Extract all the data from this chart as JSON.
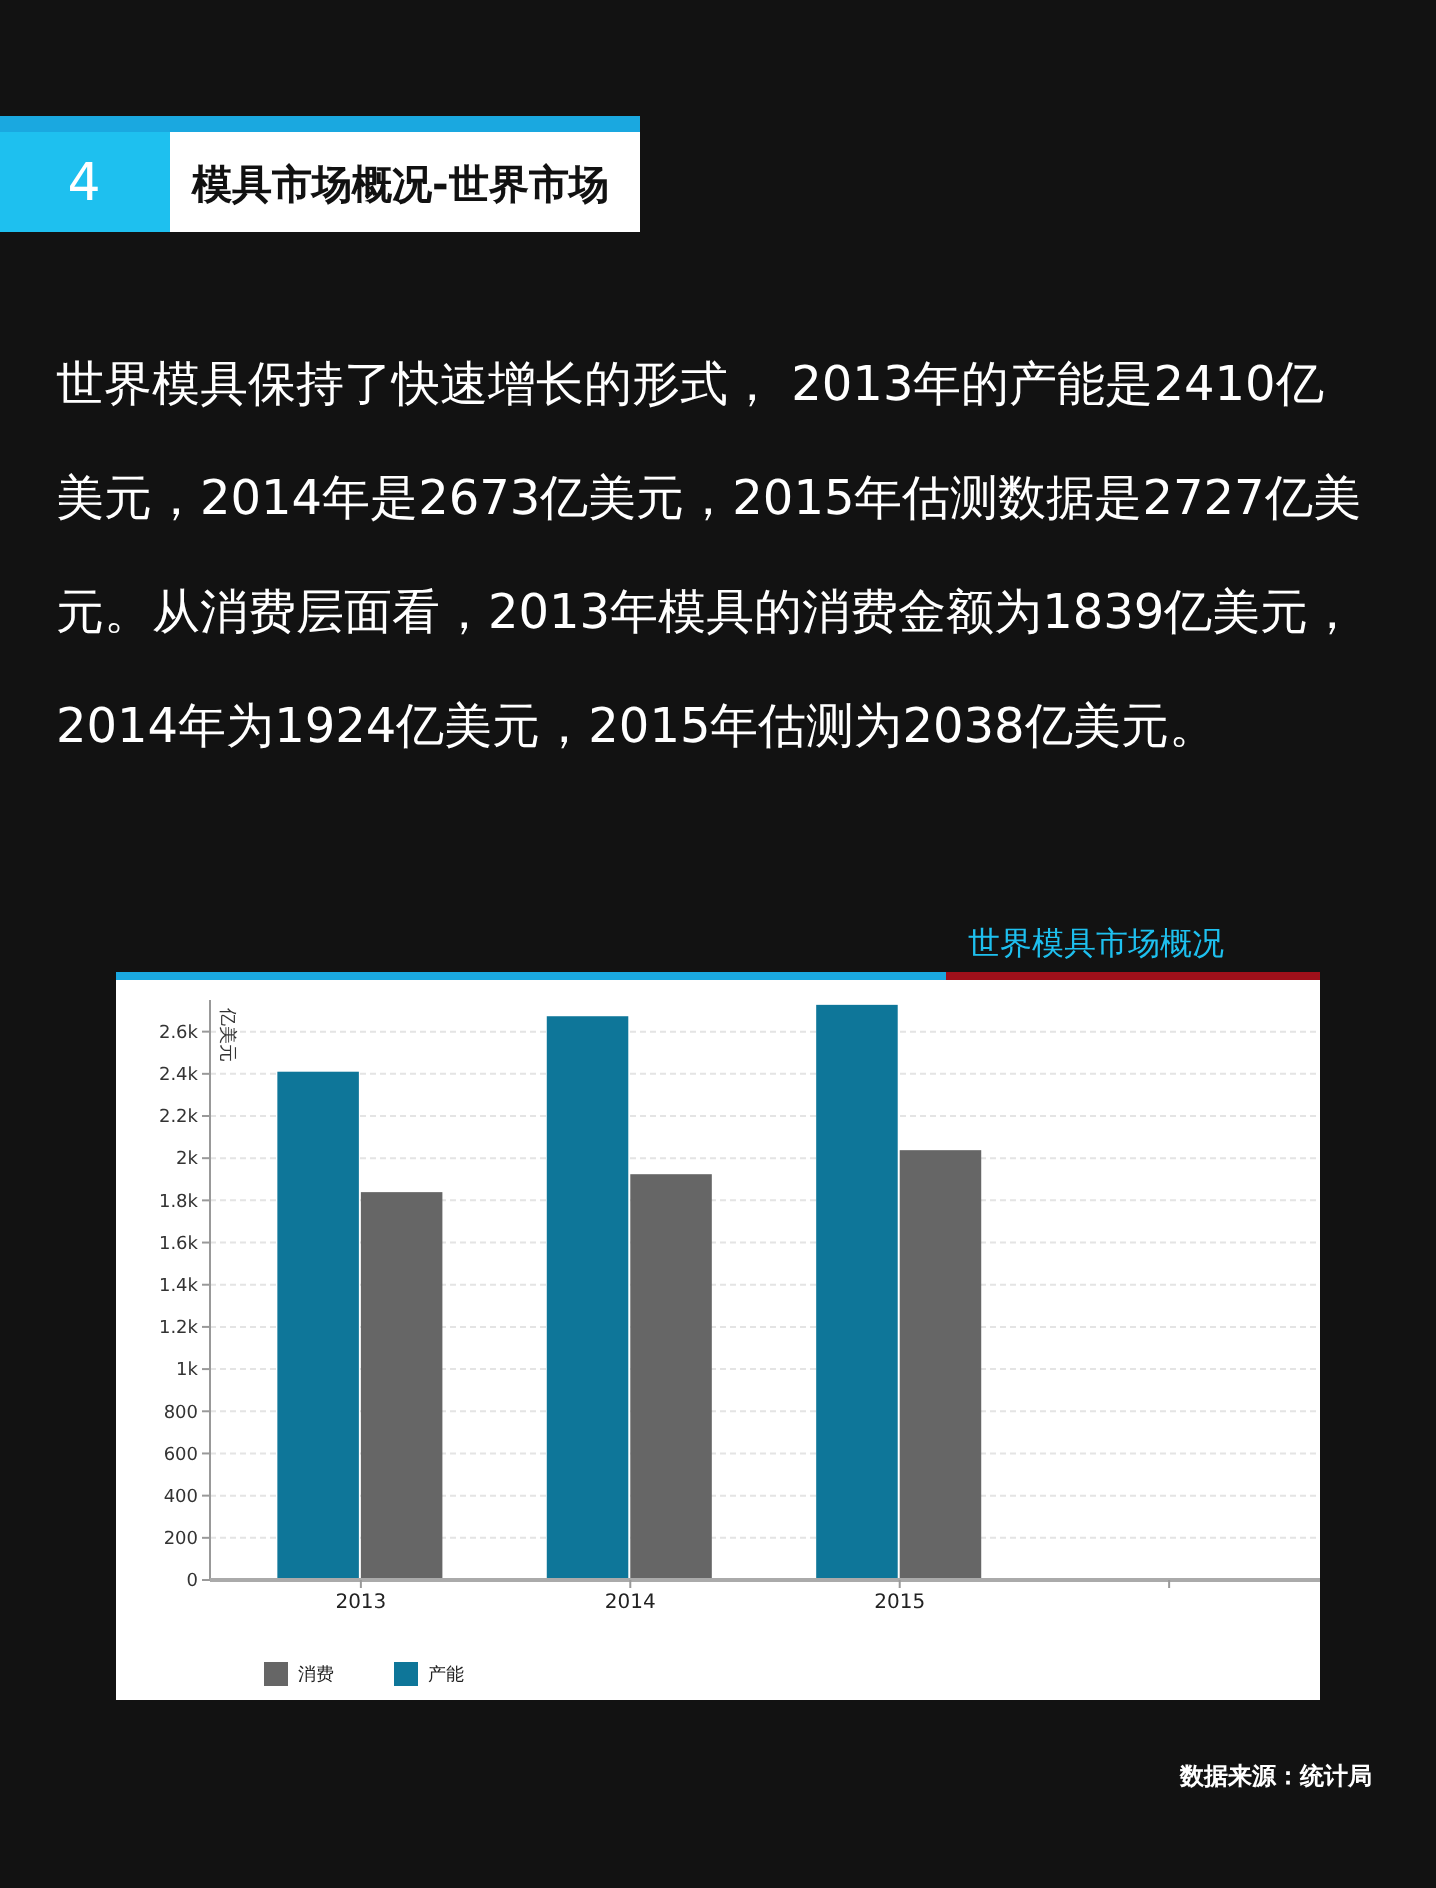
{
  "chart_data": {
    "type": "bar",
    "title": "模具市场概况-世界市场",
    "subtitle": "世界模具保持了快速增长的形式， 2013年的产能是2410亿美元，2014年是2673亿美元，2015年估测数据是2727亿美元。从消费层面看，2013年模具的消费金额为1839亿美元，2014年为1924亿美元，2015年估测为2038亿美元。",
    "annotations": [
      "4",
      "世界模具市场概况",
      "数据来源：统计局"
    ],
    "ylabel": "亿美元",
    "categories": [
      "2013",
      "2014",
      "2015",
      null
    ],
    "series": [
      {
        "name": "产能",
        "color": "#0e7699",
        "values": [
          2410,
          2673,
          2727,
          null
        ]
      },
      {
        "name": "消费",
        "color": "#666666",
        "values": [
          1839,
          1924,
          2038,
          null
        ]
      }
    ],
    "ylim": [
      0,
      2750
    ],
    "yticks": [
      0,
      200,
      400,
      600,
      800,
      {
        "value": 1000,
        "label": "1k"
      },
      {
        "value": 1200,
        "label": "1.2k"
      },
      {
        "value": 1400,
        "label": "1.4k"
      },
      {
        "value": 1600,
        "label": "1.6k"
      },
      {
        "value": 1800,
        "label": "1.8k"
      },
      {
        "value": 2000,
        "label": "2k"
      },
      {
        "value": 2200,
        "label": "2.2k"
      },
      {
        "value": 2400,
        "label": "2.4k"
      },
      {
        "value": 2600,
        "label": "2.6k"
      }
    ],
    "grid": "y",
    "legend": "bottom left"
  }
}
